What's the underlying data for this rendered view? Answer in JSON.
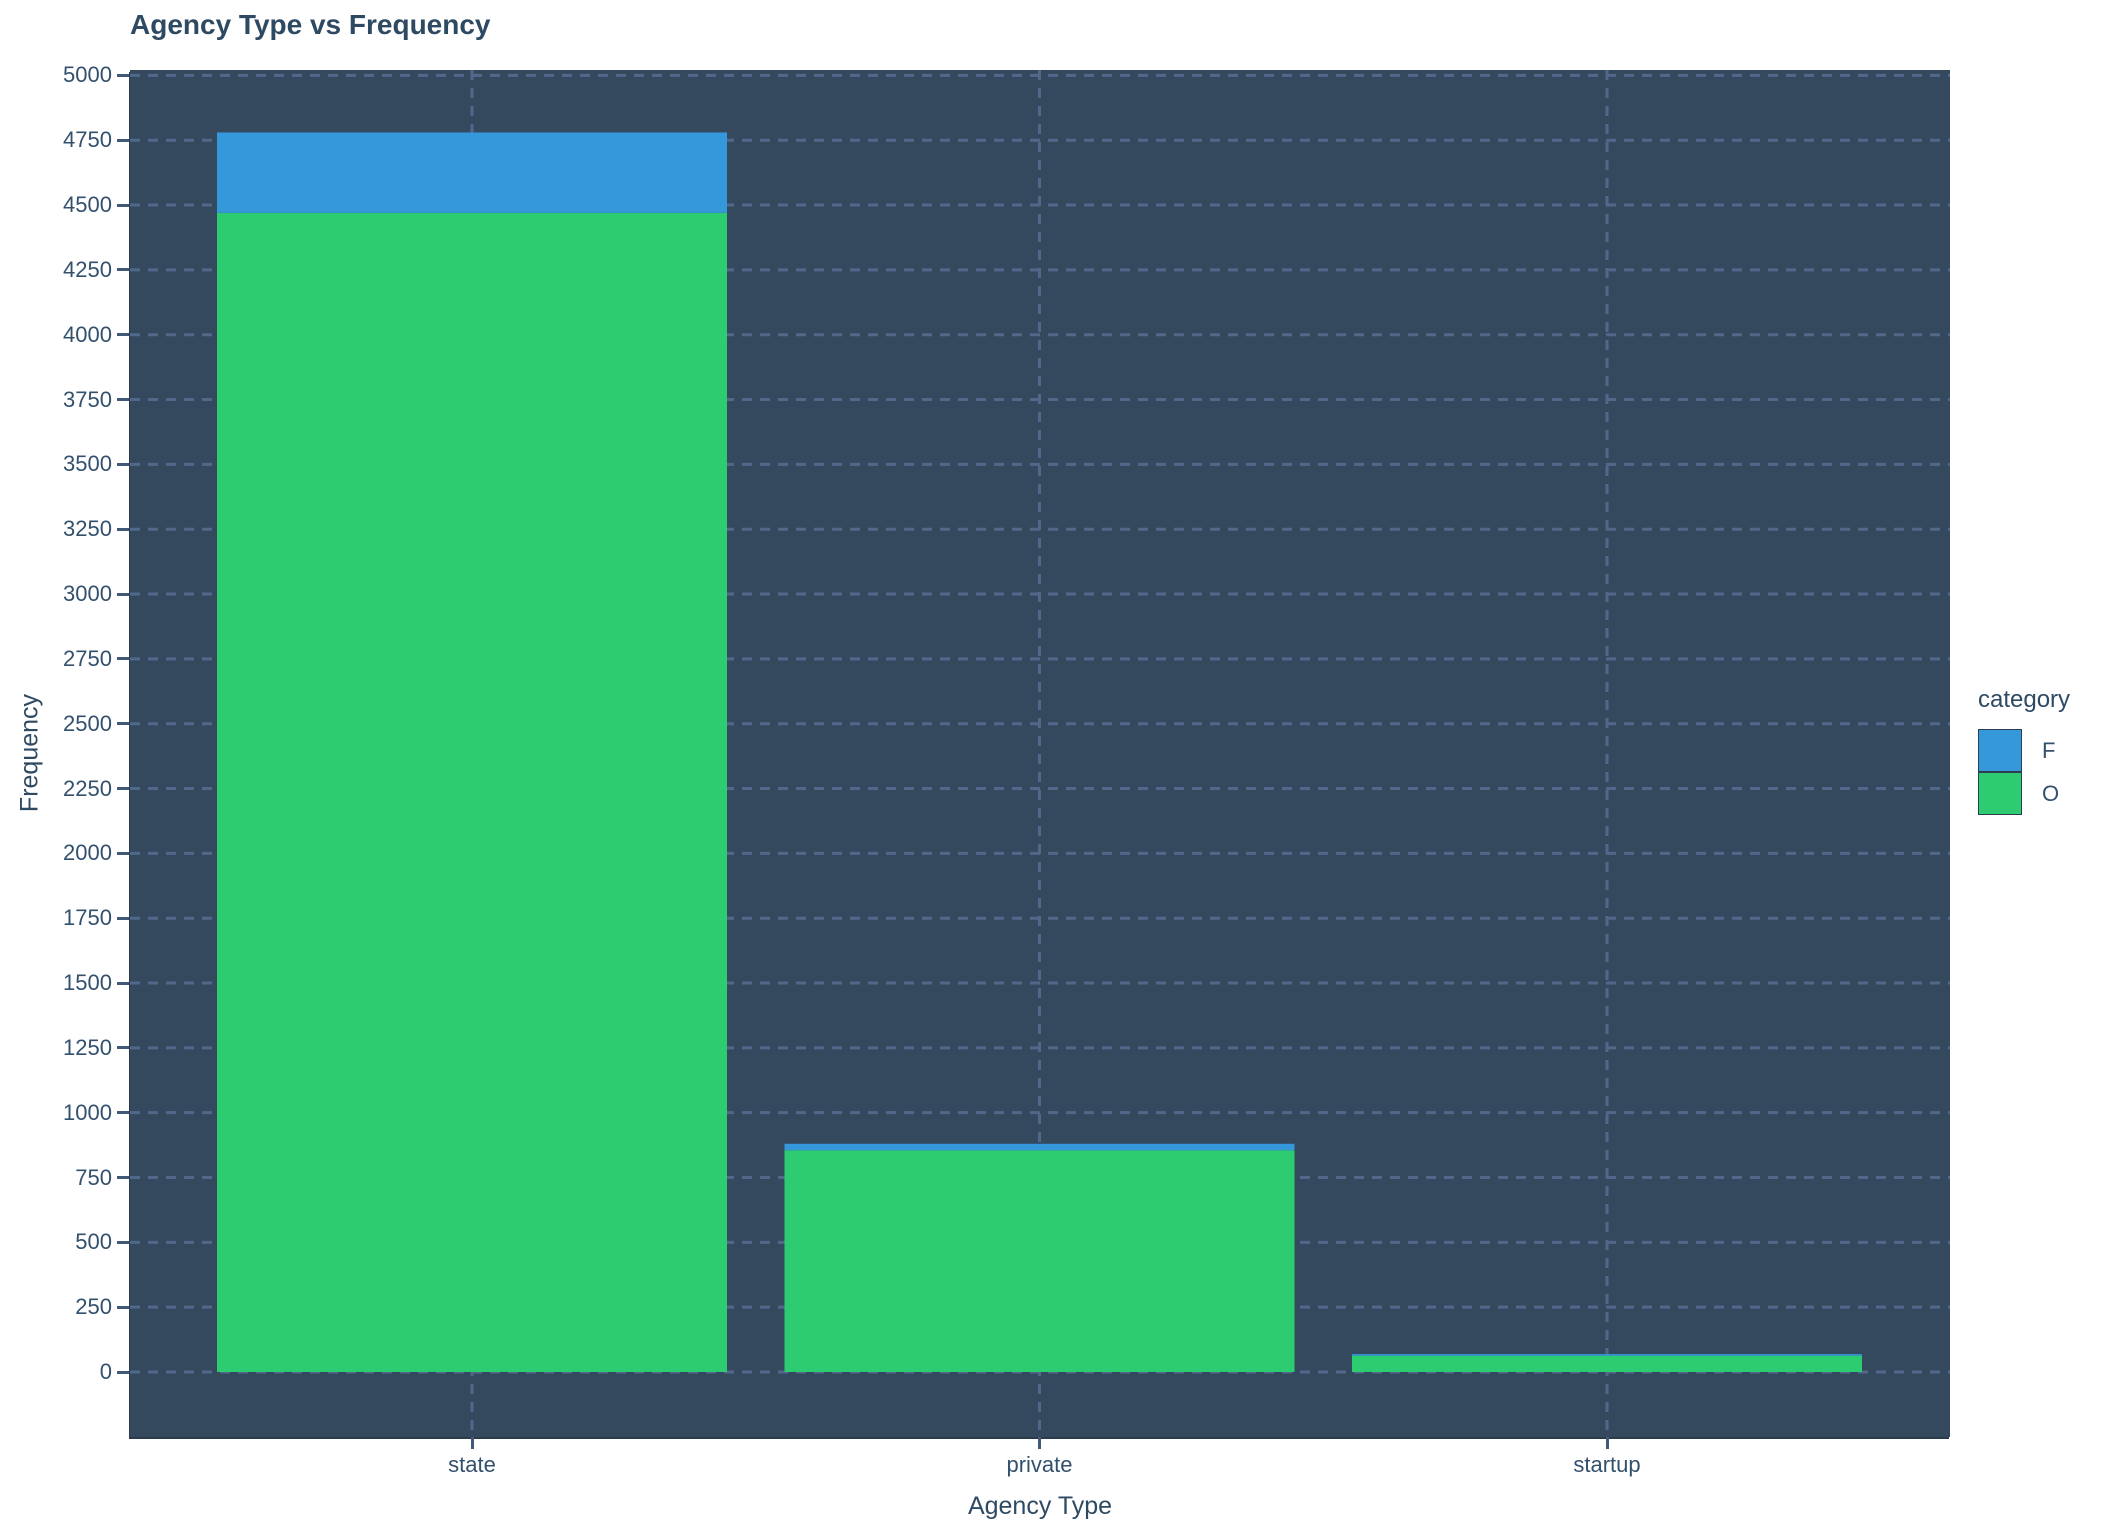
{
  "chart_data": {
    "type": "bar",
    "stacked": true,
    "title": "Agency Type vs Frequency",
    "xlabel": "Agency Type",
    "ylabel": "Frequency",
    "categories": [
      "state",
      "private",
      "startup"
    ],
    "series": [
      {
        "name": "F",
        "color": "#3498db",
        "values": [
          310,
          25,
          6
        ]
      },
      {
        "name": "O",
        "color": "#2ecc71",
        "values": [
          4470,
          855,
          63
        ]
      }
    ],
    "stack_bottom_to_top": [
      "O",
      "F"
    ],
    "stack_totals": [
      4780,
      880,
      69
    ],
    "ylim": [
      0,
      5000
    ],
    "ytick_step": 250,
    "grid": "dashed-major-horizontal-and-category-vertical",
    "legend": {
      "title": "category",
      "position": "right",
      "entries": [
        "F",
        "O"
      ]
    }
  },
  "colors": {
    "figure_bg": "#ffffff",
    "panel_bg": "#34495e",
    "grid": "#52688a",
    "title_text": "#2e4a63",
    "tick_text": "#33506d",
    "tick_mark": "#3f5976",
    "series_f": "#3498db",
    "series_o": "#2ecc71",
    "swatch_border": "#2c3e50"
  }
}
